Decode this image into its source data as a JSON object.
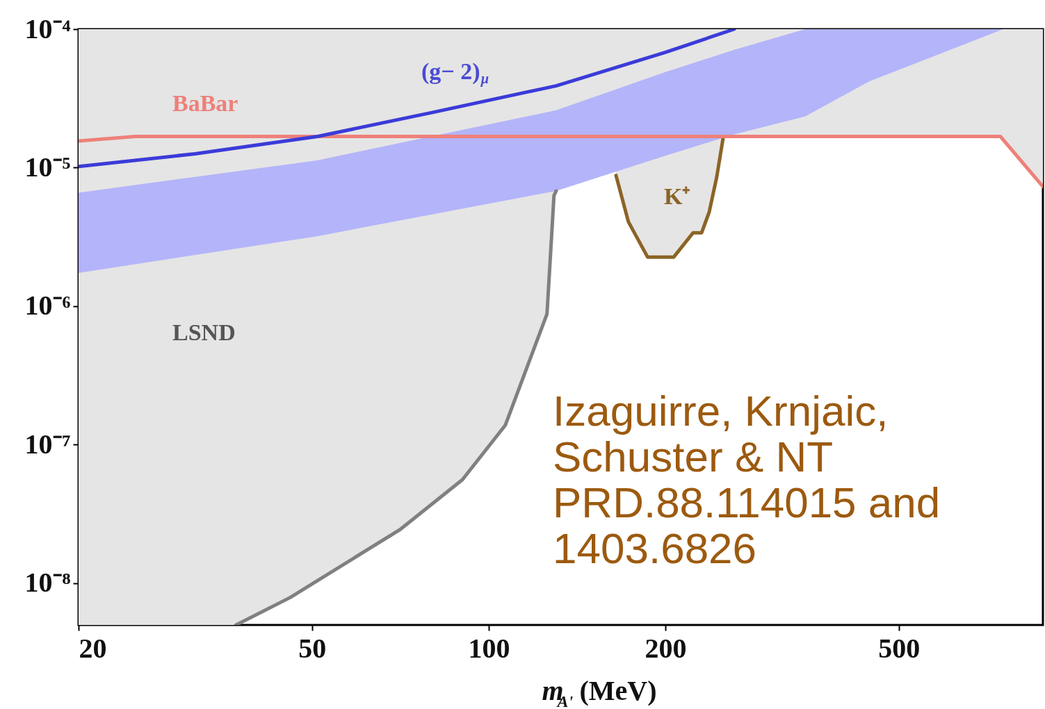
{
  "chart_data": {
    "type": "line",
    "xlabel": "m$_{A'}$ (MeV)",
    "xlim": [
      20,
      880
    ],
    "ylim": [
      5e-09,
      0.0001
    ],
    "log": "xy",
    "xticks": [
      20,
      50,
      100,
      200,
      500
    ],
    "yticks": [
      {
        "value": 0.0001,
        "label": "10⁻⁴"
      },
      {
        "value": 1e-05,
        "label": "10⁻⁵"
      },
      {
        "value": 1e-06,
        "label": "10⁻⁶"
      },
      {
        "value": 1e-07,
        "label": "10⁻⁷"
      },
      {
        "value": 1e-08,
        "label": "10⁻⁸"
      }
    ],
    "grid": false,
    "marker": "none",
    "line_style": "solid",
    "series": [
      {
        "type": "area",
        "color": "#e5e5e5",
        "x": [
          20,
          37.1,
          45.9,
          70.7,
          90.2,
          106.7,
          125.7,
          129.2,
          130.3
        ],
        "values": [
          null,
          null,
          null,
          null,
          null,
          null,
          null,
          null,
          null
        ],
        "lower": [
          5e-09,
          5e-09,
          7.9e-09,
          2.45e-08,
          5.6e-08,
          1.38e-07,
          8.8e-07,
          6.3e-06,
          6.8e-06
        ],
        "upper": [
          0.0001,
          0.0001,
          0.0001,
          0.0001,
          0.0001,
          0.0001,
          0.0001,
          0.0001,
          0.0001
        ]
      },
      {
        "type": "area",
        "color": "#e5e5e5",
        "x": [
          20,
          25,
          745,
          880
        ],
        "values": [
          null,
          null,
          null,
          null
        ],
        "lower": [
          1.56e-05,
          1.68e-05,
          1.68e-05,
          7.3e-06
        ],
        "upper": [
          0.0001,
          0.0001,
          0.0001,
          0.0001
        ]
      },
      {
        "type": "area",
        "color": "#e5e5e5",
        "x": [
          164.8,
          173,
          186.6,
          206.6,
          223,
          230.6,
          237.6,
          244.6,
          250.8
        ],
        "values": [
          null,
          null,
          null,
          null,
          null,
          null,
          null,
          null,
          null
        ],
        "lower": [
          8.8e-06,
          4.07e-06,
          2.26e-06,
          2.26e-06,
          3.39e-06,
          3.39e-06,
          4.8e-06,
          8.5e-06,
          1.62e-05
        ],
        "upper": [
          0.0001,
          0.0001,
          0.0001,
          0.0001,
          0.0001,
          0.0001,
          0.0001,
          0.0001,
          0.0001
        ]
      },
      {
        "type": "area",
        "color": "#b4b4fa",
        "x": [
          20,
          51,
          130.3,
          200,
          262,
          346,
          445,
          753
        ],
        "values": [
          null,
          null,
          null,
          null,
          null,
          null,
          null,
          null
        ],
        "lower": [
          1.74e-06,
          3.2e-06,
          6.8e-06,
          1.22e-05,
          1.74e-05,
          2.34e-05,
          4.2e-05,
          0.0001
        ],
        "upper": [
          6.6e-06,
          1.13e-05,
          2.6e-05,
          4.9e-05,
          7.1e-05,
          0.0001,
          0.0001,
          0.0001
        ]
      },
      {
        "color": "#808080",
        "x": [
          37.1,
          45.9,
          70.7,
          90.2,
          106.7,
          125.7,
          129.2,
          130.3
        ],
        "values": [
          5e-09,
          7.9e-09,
          2.45e-08,
          5.6e-08,
          1.38e-07,
          8.8e-07,
          6.3e-06,
          6.8e-06
        ]
      },
      {
        "color": "#8b6426",
        "x": [
          164.8,
          173,
          186.6,
          206.6,
          223,
          230.6,
          237.6,
          244.6,
          250.8
        ],
        "values": [
          8.8e-06,
          4.07e-06,
          2.26e-06,
          2.26e-06,
          3.39e-06,
          3.39e-06,
          4.8e-06,
          8.5e-06,
          1.62e-05
        ]
      },
      {
        "color": "#ee8079",
        "x": [
          20,
          25,
          745,
          880
        ],
        "values": [
          1.56e-05,
          1.68e-05,
          1.68e-05,
          7.3e-06
        ]
      },
      {
        "color": "#3b3bd9",
        "x": [
          20,
          31.6,
          51.1,
          80,
          130.3,
          200,
          262
        ],
        "values": [
          1.02e-05,
          1.26e-05,
          1.68e-05,
          2.5e-05,
          3.9e-05,
          6.8e-05,
          0.0001
        ]
      }
    ],
    "annotations": [
      "BaBar",
      "(g− 2)$_{μ}$",
      "K⁺",
      "LSND",
      "Izaguirre, Krnjaic,\nSchuster & NT\nPRD.88.114015 and\n1403.6826"
    ]
  }
}
